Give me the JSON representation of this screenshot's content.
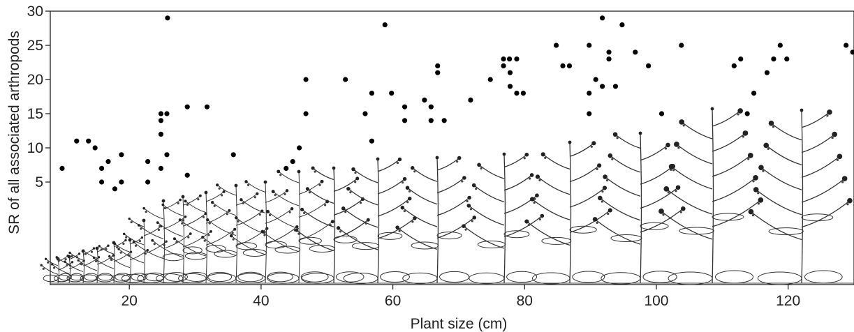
{
  "chart_data": {
    "type": "scatter",
    "xlabel": "Plant size (cm)",
    "ylabel": "SR of all associated arthropods",
    "xlim": [
      8,
      130
    ],
    "ylim": [
      -10,
      30
    ],
    "x_ticks": [
      20,
      40,
      60,
      80,
      100,
      120
    ],
    "x_tick_labels": [
      "20",
      "40",
      "60",
      "80",
      "100",
      "120"
    ],
    "y_ticks": [
      5,
      10,
      15,
      20,
      25,
      30
    ],
    "y_tick_labels": [
      "5",
      "10",
      "15",
      "20",
      "25",
      "30"
    ],
    "grid": false,
    "legend": "none",
    "marker_color": "#000000",
    "illustration": "plant silhouettes of increasing size drawn along the bottom of the plot",
    "series": [
      {
        "points": [
          [
            9.8,
            7
          ],
          [
            12,
            11
          ],
          [
            13.8,
            11
          ],
          [
            14.8,
            10
          ],
          [
            15.8,
            7
          ],
          [
            15.8,
            5
          ],
          [
            16.8,
            8
          ],
          [
            17.8,
            4
          ],
          [
            18.8,
            9
          ],
          [
            18.8,
            5
          ],
          [
            22.8,
            8
          ],
          [
            22.8,
            5
          ],
          [
            24.8,
            15
          ],
          [
            24.8,
            14
          ],
          [
            24.8,
            12
          ],
          [
            24.8,
            7
          ],
          [
            25.7,
            15
          ],
          [
            25.7,
            9
          ],
          [
            25.8,
            29
          ],
          [
            28.8,
            16
          ],
          [
            28.8,
            6
          ],
          [
            31.8,
            16
          ],
          [
            35.8,
            9
          ],
          [
            43.8,
            7
          ],
          [
            44.8,
            8
          ],
          [
            45.8,
            10
          ],
          [
            46.8,
            20
          ],
          [
            46.8,
            15
          ],
          [
            52.8,
            20
          ],
          [
            55.8,
            15
          ],
          [
            56.8,
            18
          ],
          [
            56.8,
            11
          ],
          [
            58.8,
            28
          ],
          [
            59.8,
            18
          ],
          [
            61.8,
            16
          ],
          [
            61.8,
            14
          ],
          [
            64.8,
            17
          ],
          [
            65.8,
            16
          ],
          [
            65.8,
            14
          ],
          [
            66.8,
            22
          ],
          [
            66.8,
            21
          ],
          [
            67.8,
            14
          ],
          [
            71.8,
            17
          ],
          [
            74.8,
            20
          ],
          [
            76.8,
            23
          ],
          [
            76.8,
            22
          ],
          [
            77.7,
            23
          ],
          [
            77.8,
            21
          ],
          [
            77.8,
            19
          ],
          [
            78.8,
            23
          ],
          [
            78.8,
            18
          ],
          [
            79.8,
            18
          ],
          [
            84.8,
            25
          ],
          [
            85.8,
            22
          ],
          [
            86.8,
            22
          ],
          [
            89.8,
            25
          ],
          [
            89.8,
            18
          ],
          [
            89.8,
            15
          ],
          [
            90.8,
            20
          ],
          [
            91.8,
            29
          ],
          [
            91.8,
            19
          ],
          [
            92.8,
            24
          ],
          [
            92.8,
            23
          ],
          [
            93.8,
            19
          ],
          [
            94.8,
            28
          ],
          [
            96.8,
            24
          ],
          [
            98.8,
            22
          ],
          [
            100.8,
            15
          ],
          [
            103.8,
            25
          ],
          [
            111.8,
            22
          ],
          [
            112.8,
            23
          ],
          [
            113.8,
            15
          ],
          [
            114.8,
            18
          ],
          [
            116.8,
            21
          ],
          [
            117.8,
            23
          ],
          [
            118.8,
            25
          ],
          [
            119.8,
            23
          ],
          [
            128.8,
            25
          ],
          [
            129.8,
            24
          ]
        ]
      }
    ]
  }
}
